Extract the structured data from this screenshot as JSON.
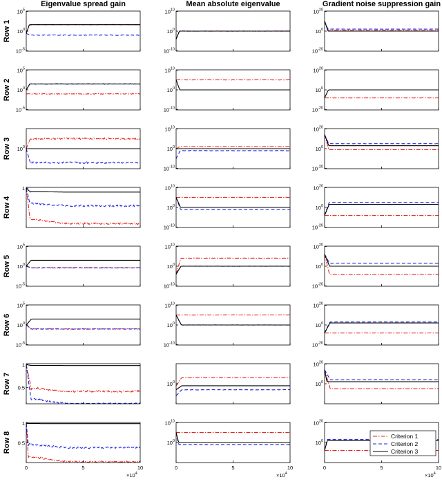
{
  "figure": {
    "column_titles": [
      "Eigenvalue spread gain",
      "Mean absolute eigenvalue",
      "Gradient noise suppression gain"
    ],
    "row_labels": [
      "Row 1",
      "Row 2",
      "Row 3",
      "Row 4",
      "Row 5",
      "Row 6",
      "Row 7",
      "Row 8"
    ],
    "x_ticks": [
      "0",
      "5",
      "10"
    ],
    "x_multiplier": "×10",
    "x_multiplier_exp": "4",
    "legend": [
      "Criterion 1",
      "Criterion 2",
      "Criterion 3"
    ],
    "colors": {
      "criterion_1": "#e8221c",
      "criterion_2": "#1f22e0",
      "criterion_3": "#000000"
    }
  },
  "chart_data": {
    "type": "line",
    "x_range": [
      0,
      100000
    ],
    "x_ticks": [
      0,
      50000,
      100000
    ],
    "series_names": [
      "Criterion 1",
      "Criterion 2",
      "Criterion 3"
    ],
    "legend_location": "bottom-right of the Row 8 / Gradient noise suppression gain panel",
    "grid": false,
    "panels": [
      {
        "row": "Row 1",
        "column": "Eigenvalue spread gain",
        "yscale": "log",
        "ylim": [
          1e-05,
          100000.0
        ],
        "y_ticks": [
          "10^5",
          "10^0",
          "10^-5"
        ],
        "series": [
          {
            "name": "Criterion 1",
            "start": 0.3,
            "final": 40
          },
          {
            "name": "Criterion 2",
            "start": 0.3,
            "final": 0.1
          },
          {
            "name": "Criterion 3",
            "start": 0.3,
            "final": 40
          }
        ]
      },
      {
        "row": "Row 1",
        "column": "Mean absolute eigenvalue",
        "yscale": "log",
        "ylim": [
          1e-10,
          10000000000.0
        ],
        "y_ticks": [
          "10^10",
          "10^0",
          "10^-10"
        ],
        "series": [
          {
            "name": "Criterion 1",
            "start": 0.0001,
            "final": 1
          },
          {
            "name": "Criterion 2",
            "start": 0.0001,
            "final": 1
          },
          {
            "name": "Criterion 3",
            "start": 0.0001,
            "final": 1
          }
        ]
      },
      {
        "row": "Row 1",
        "column": "Gradient noise suppression gain",
        "yscale": "log",
        "ylim": [
          1e-20,
          1e+20
        ],
        "y_ticks": [
          "10^20",
          "10^0",
          "10^-20"
        ],
        "series": [
          {
            "name": "Criterion 1",
            "start": 10000000000.0,
            "final": 10.0
          },
          {
            "name": "Criterion 2",
            "start": 10000000000.0,
            "final": 100.0
          },
          {
            "name": "Criterion 3",
            "start": 10000000000.0,
            "final": 1.0
          }
        ]
      },
      {
        "row": "Row 2",
        "column": "Eigenvalue spread gain",
        "yscale": "log",
        "ylim": [
          1e-05,
          100000.0
        ],
        "y_ticks": [
          "10^5",
          "10^0",
          "10^-5"
        ],
        "series": [
          {
            "name": "Criterion 1",
            "start": 0.1,
            "final": 0.1
          },
          {
            "name": "Criterion 2",
            "start": 1,
            "final": 30
          },
          {
            "name": "Criterion 3",
            "start": 1,
            "final": 30
          }
        ]
      },
      {
        "row": "Row 2",
        "column": "Mean absolute eigenvalue",
        "yscale": "log",
        "ylim": [
          1e-10,
          10000000000.0
        ],
        "y_ticks": [
          "10^10",
          "10^0",
          "10^-10"
        ],
        "series": [
          {
            "name": "Criterion 1",
            "start": 100000.0,
            "final": 100000.0
          },
          {
            "name": "Criterion 3",
            "start": 100000.0,
            "final": 1
          }
        ]
      },
      {
        "row": "Row 2",
        "column": "Gradient noise suppression gain",
        "yscale": "log",
        "ylim": [
          1e-20,
          1e+20
        ],
        "y_ticks": [
          "10^20",
          "10^0",
          "10^-20"
        ],
        "series": [
          {
            "name": "Criterion 1",
            "start": 1e-08,
            "final": 1e-08
          },
          {
            "name": "Criterion 3",
            "start": 1e-08,
            "final": 1
          }
        ]
      },
      {
        "row": "Row 3",
        "column": "Eigenvalue spread gain",
        "yscale": "log",
        "ylim": [
          0.01,
          100
        ],
        "y_ticks": [
          "10^0"
        ],
        "series": [
          {
            "name": "Criterion 1",
            "start": 1,
            "final": 10
          },
          {
            "name": "Criterion 2",
            "start": 1,
            "final": 0.04
          },
          {
            "name": "Criterion 3",
            "start": 1,
            "final": 1
          }
        ]
      },
      {
        "row": "Row 3",
        "column": "Mean absolute eigenvalue",
        "yscale": "log",
        "ylim": [
          1e-10,
          10000000000.0
        ],
        "y_ticks": [
          "10^10",
          "10^0",
          "10^-10"
        ],
        "series": [
          {
            "name": "Criterion 1",
            "start": 1,
            "final": 10
          },
          {
            "name": "Criterion 2",
            "start": 1e-05,
            "final": 0.1
          },
          {
            "name": "Criterion 3",
            "start": 1,
            "final": 1
          }
        ]
      },
      {
        "row": "Row 3",
        "column": "Gradient noise suppression gain",
        "yscale": "log",
        "ylim": [
          1e-20,
          1e+20
        ],
        "y_ticks": [
          "10^20",
          "10^0",
          "10^-20"
        ],
        "series": [
          {
            "name": "Criterion 1",
            "start": 100000000000000.0,
            "final": 0.1
          },
          {
            "name": "Criterion 2",
            "start": 100000000000000.0,
            "final": 100000.0
          },
          {
            "name": "Criterion 3",
            "start": 100000000000000.0,
            "final": 1000.0
          }
        ]
      },
      {
        "row": "Row 4",
        "column": "Eigenvalue spread gain",
        "yscale": "linear",
        "ylim": [
          0,
          1.02
        ],
        "y_ticks": [
          "1"
        ],
        "series": [
          {
            "name": "Criterion 1",
            "start": 1,
            "final": 0.1
          },
          {
            "name": "Criterion 2",
            "start": 1,
            "final": 0.55
          },
          {
            "name": "Criterion 3",
            "start": 1,
            "final": 0.9
          }
        ]
      },
      {
        "row": "Row 4",
        "column": "Mean absolute eigenvalue",
        "yscale": "log",
        "ylim": [
          1e-10,
          10000000000.0
        ],
        "y_ticks": [
          "10^10",
          "10^0",
          "10^-10"
        ],
        "series": [
          {
            "name": "Criterion 1",
            "start": 100000.0,
            "final": 100000.0
          },
          {
            "name": "Criterion 2",
            "start": 100000.0,
            "final": 0.1
          },
          {
            "name": "Criterion 3",
            "start": 100000.0,
            "final": 1
          }
        ]
      },
      {
        "row": "Row 4",
        "column": "Gradient noise suppression gain",
        "yscale": "log",
        "ylim": [
          1e-20,
          1e+20
        ],
        "y_ticks": [
          "10^20",
          "10^0",
          "10^-20"
        ],
        "series": [
          {
            "name": "Criterion 1",
            "start": 1e-08,
            "final": 1e-08
          },
          {
            "name": "Criterion 2",
            "start": 1e-08,
            "final": 100000.0
          },
          {
            "name": "Criterion 3",
            "start": 1e-08,
            "final": 1000.0
          }
        ]
      },
      {
        "row": "Row 5",
        "column": "Eigenvalue spread gain",
        "yscale": "log",
        "ylim": [
          1e-05,
          100000.0
        ],
        "y_ticks": [
          "10^5",
          "10^0",
          "10^-5"
        ],
        "series": [
          {
            "name": "Criterion 1",
            "start": 1,
            "final": 0.4
          },
          {
            "name": "Criterion 2",
            "start": 1,
            "final": 0.4
          },
          {
            "name": "Criterion 3",
            "start": 1,
            "final": 30
          }
        ]
      },
      {
        "row": "Row 5",
        "column": "Mean absolute eigenvalue",
        "yscale": "log",
        "ylim": [
          1e-10,
          10000000000.0
        ],
        "y_ticks": [
          "10^10",
          "10^0",
          "10^-10"
        ],
        "series": [
          {
            "name": "Criterion 1",
            "start": 0.0001,
            "final": 10000.0
          },
          {
            "name": "Criterion 2",
            "start": 0.0001,
            "final": 1
          },
          {
            "name": "Criterion 3",
            "start": 0.0001,
            "final": 1
          }
        ]
      },
      {
        "row": "Row 5",
        "column": "Gradient noise suppression gain",
        "yscale": "log",
        "ylim": [
          1e-20,
          1e+20
        ],
        "y_ticks": [
          "10^20",
          "10^0",
          "10^-20"
        ],
        "series": [
          {
            "name": "Criterion 1",
            "start": 1000000000000.0,
            "final": 1e-08
          },
          {
            "name": "Criterion 2",
            "start": 1000000000000.0,
            "final": 1000.0
          },
          {
            "name": "Criterion 3",
            "start": 1000000000000.0,
            "final": 1
          }
        ]
      },
      {
        "row": "Row 6",
        "column": "Eigenvalue spread gain",
        "yscale": "log",
        "ylim": [
          1e-05,
          100000.0
        ],
        "y_ticks": [
          "10^5",
          "10^0",
          "10^-5"
        ],
        "series": [
          {
            "name": "Criterion 1",
            "start": 1,
            "final": 0.1
          },
          {
            "name": "Criterion 2",
            "start": 1,
            "final": 0.1
          },
          {
            "name": "Criterion 3",
            "start": 1,
            "final": 30
          }
        ]
      },
      {
        "row": "Row 6",
        "column": "Mean absolute eigenvalue",
        "yscale": "log",
        "ylim": [
          1e-10,
          10000000000.0
        ],
        "y_ticks": [
          "10^10",
          "10^0",
          "10^-10"
        ],
        "series": [
          {
            "name": "Criterion 1",
            "start": 100000.0,
            "final": 100000.0
          },
          {
            "name": "Criterion 2",
            "start": 100000.0,
            "final": 1
          },
          {
            "name": "Criterion 3",
            "start": 100000.0,
            "final": 1
          }
        ]
      },
      {
        "row": "Row 6",
        "column": "Gradient noise suppression gain",
        "yscale": "log",
        "ylim": [
          1e-20,
          1e+20
        ],
        "y_ticks": [
          "10^20",
          "10^0",
          "10^-20"
        ],
        "series": [
          {
            "name": "Criterion 1",
            "start": 1e-08,
            "final": 1e-08
          },
          {
            "name": "Criterion 2",
            "start": 1e-08,
            "final": 1000.0
          },
          {
            "name": "Criterion 3",
            "start": 1e-08,
            "final": 100.0
          }
        ]
      },
      {
        "row": "Row 7",
        "column": "Eigenvalue spread gain",
        "yscale": "linear",
        "ylim": [
          0.15,
          1.02
        ],
        "y_ticks": [
          "1",
          "0.5"
        ],
        "series": [
          {
            "name": "Criterion 1",
            "start": 1,
            "final": 0.42
          },
          {
            "name": "Criterion 2",
            "start": 1,
            "final": 0.15
          },
          {
            "name": "Criterion 3",
            "start": 1,
            "final": 0.98
          }
        ]
      },
      {
        "row": "Row 7",
        "column": "Mean absolute eigenvalue",
        "yscale": "log",
        "ylim": [
          1e-10,
          10000000000.0
        ],
        "y_ticks": [
          "10^0"
        ],
        "series": [
          {
            "name": "Criterion 1",
            "start": 0.1,
            "final": 1000.0
          },
          {
            "name": "Criterion 2",
            "start": 1e-06,
            "final": 0.001
          },
          {
            "name": "Criterion 3",
            "start": 0.001,
            "final": 0.1
          }
        ]
      },
      {
        "row": "Row 7",
        "column": "Gradient noise suppression gain",
        "yscale": "log",
        "ylim": [
          1e-20,
          1e+20
        ],
        "y_ticks": [
          "10^20",
          "10^0"
        ],
        "series": [
          {
            "name": "Criterion 1",
            "start": 100000000000000.0,
            "final": 1e-05
          },
          {
            "name": "Criterion 2",
            "start": 100000000000000.0,
            "final": 10000.0
          },
          {
            "name": "Criterion 3",
            "start": 100000000000000.0,
            "final": 100.0
          }
        ]
      },
      {
        "row": "Row 8",
        "column": "Eigenvalue spread gain",
        "yscale": "linear",
        "ylim": [
          0,
          1.02
        ],
        "y_ticks": [
          "1",
          "0.5"
        ],
        "series": [
          {
            "name": "Criterion 1",
            "start": 1,
            "final": 0.02
          },
          {
            "name": "Criterion 2",
            "start": 1,
            "final": 0.38
          },
          {
            "name": "Criterion 3",
            "start": 1,
            "final": 0.99
          }
        ]
      },
      {
        "row": "Row 8",
        "column": "Mean absolute eigenvalue",
        "yscale": "log",
        "ylim": [
          1e-10,
          10000000000.0
        ],
        "y_ticks": [
          "10^10",
          "10^0"
        ],
        "series": [
          {
            "name": "Criterion 1",
            "start": 100000.0,
            "final": 100000.0
          },
          {
            "name": "Criterion 2",
            "start": 100000.0,
            "final": 0.1
          },
          {
            "name": "Criterion 3",
            "start": 100000.0,
            "final": 1
          }
        ]
      },
      {
        "row": "Row 8",
        "column": "Gradient noise suppression gain",
        "yscale": "log",
        "ylim": [
          1e-20,
          1e+20
        ],
        "y_ticks": [
          "10^20",
          "10^0"
        ],
        "series": [
          {
            "name": "Criterion 1",
            "start": 1e-08,
            "final": 1e-08
          },
          {
            "name": "Criterion 2",
            "start": 1e-08,
            "final": 1000.0
          },
          {
            "name": "Criterion 3",
            "start": 1e-08,
            "final": 100.0
          }
        ]
      }
    ]
  }
}
